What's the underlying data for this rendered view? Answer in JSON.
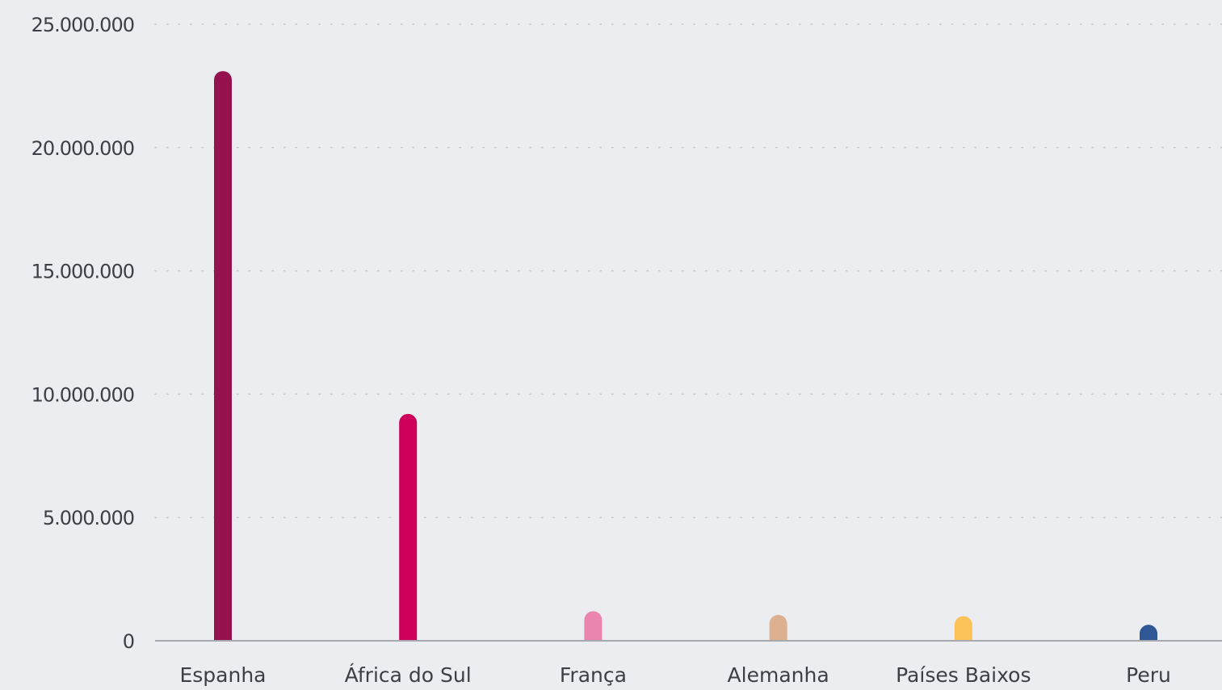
{
  "chart_data": {
    "type": "bar",
    "title": "",
    "xlabel": "",
    "ylabel": "",
    "categories": [
      "Espanha",
      "África do Sul",
      "França",
      "Alemanha",
      "Países Baixos",
      "Peru"
    ],
    "values": [
      23100000,
      9200000,
      1200000,
      1050000,
      1000000,
      650000
    ],
    "colors": [
      "#96124F",
      "#CE005C",
      "#E985AF",
      "#DDB18F",
      "#FCC25A",
      "#2F5796"
    ],
    "ylim": [
      0,
      25000000
    ],
    "yticks": [
      0,
      5000000,
      10000000,
      15000000,
      20000000,
      25000000
    ],
    "ytick_labels": [
      "0",
      "5.000.000",
      "10.000.000",
      "15.000.000",
      "20.000.000",
      "25.000.000"
    ],
    "grid": true,
    "legend": "none"
  }
}
